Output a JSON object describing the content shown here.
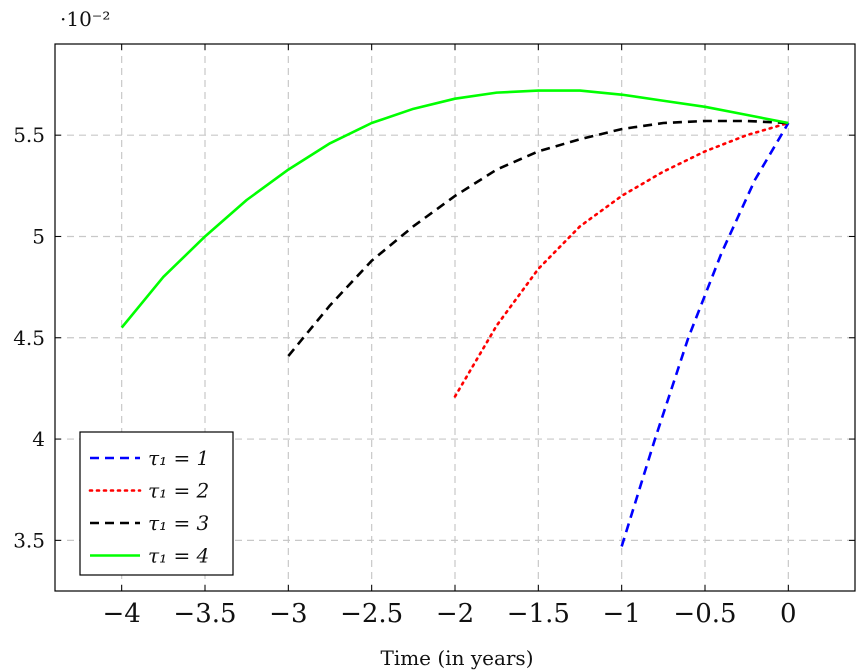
{
  "chart_data": {
    "type": "line",
    "title": "",
    "xlabel": "Time (in years)",
    "ylabel": "",
    "y_scale_label": "·10⁻²",
    "xlim": [
      -4.4,
      0.4
    ],
    "ylim": [
      3.25,
      5.95
    ],
    "x_ticks": [
      -4,
      -3.5,
      -3,
      -2.5,
      -2,
      -1.5,
      -1,
      -0.5,
      0
    ],
    "x_tick_labels": [
      "−4",
      "−3.5",
      "−3",
      "−2.5",
      "−2",
      "−1.5",
      "−1",
      "−0.5",
      "0"
    ],
    "y_ticks": [
      3.5,
      4,
      4.5,
      5,
      5.5
    ],
    "y_tick_labels": [
      "3.5",
      "4",
      "4.5",
      "5",
      "5.5"
    ],
    "grid": true,
    "legend_position": "bottom-left",
    "series": [
      {
        "name": "τ₁ = 1",
        "color": "#0000ff",
        "dash": "dashed",
        "x": [
          -1.0,
          -0.8,
          -0.6,
          -0.4,
          -0.2,
          0.0
        ],
        "y": [
          3.47,
          4.0,
          4.5,
          4.92,
          5.28,
          5.56
        ]
      },
      {
        "name": "τ₁ = 2",
        "color": "#ff0000",
        "dash": "dotted",
        "x": [
          -2.0,
          -1.75,
          -1.5,
          -1.25,
          -1.0,
          -0.75,
          -0.5,
          -0.25,
          0.0
        ],
        "y": [
          4.21,
          4.56,
          4.84,
          5.05,
          5.2,
          5.32,
          5.42,
          5.5,
          5.56
        ]
      },
      {
        "name": "τ₁ = 3",
        "color": "#000000",
        "dash": "dashed",
        "x": [
          -3.0,
          -2.75,
          -2.5,
          -2.25,
          -2.0,
          -1.75,
          -1.5,
          -1.25,
          -1.0,
          -0.75,
          -0.5,
          -0.25,
          0.0
        ],
        "y": [
          4.41,
          4.66,
          4.88,
          5.05,
          5.2,
          5.33,
          5.42,
          5.48,
          5.53,
          5.56,
          5.57,
          5.57,
          5.56
        ]
      },
      {
        "name": "τ₁ = 4",
        "color": "#00ff00",
        "dash": "solid",
        "x": [
          -4.0,
          -3.75,
          -3.5,
          -3.25,
          -3.0,
          -2.75,
          -2.5,
          -2.25,
          -2.0,
          -1.75,
          -1.5,
          -1.25,
          -1.0,
          -0.75,
          -0.5,
          -0.25,
          0.0
        ],
        "y": [
          4.55,
          4.8,
          5.0,
          5.18,
          5.33,
          5.46,
          5.56,
          5.63,
          5.68,
          5.71,
          5.72,
          5.72,
          5.7,
          5.67,
          5.64,
          5.6,
          5.56
        ]
      }
    ]
  }
}
